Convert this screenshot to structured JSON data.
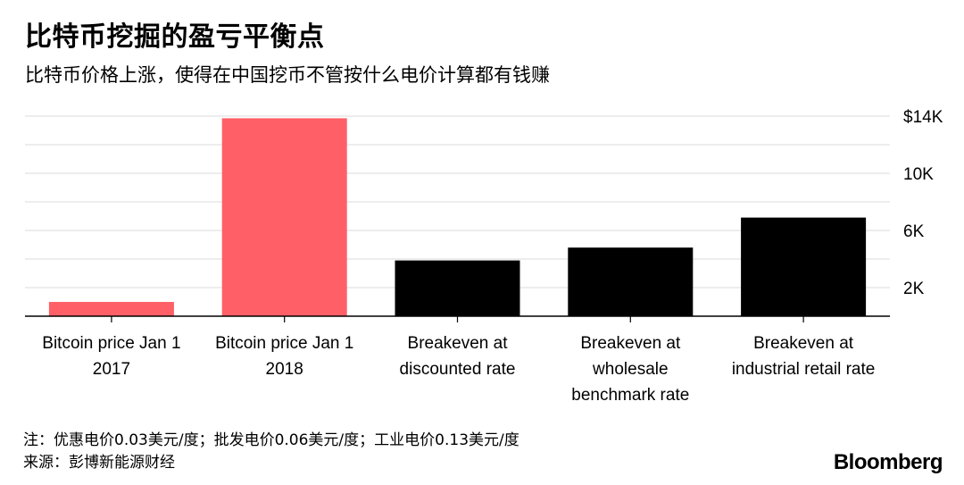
{
  "title": "比特币挖掘的盈亏平衡点",
  "subtitle": "比特币价格上涨，使得在中国挖币不管按什么电价计算都有钱赚",
  "footnote": {
    "note": "注：优惠电价0.03美元/度；批发电价0.06美元/度；工业电价0.13美元/度",
    "source": "来源：彭博新能源财经"
  },
  "brand": "Bloomberg",
  "colors": {
    "highlight": "#ff5f66",
    "bar": "#000000",
    "grid": "#e2e2e2",
    "baseline": "#000000",
    "text": "#000000"
  },
  "chart_data": {
    "type": "bar",
    "categories": [
      [
        "Bitcoin price Jan 1",
        "2017"
      ],
      [
        "Bitcoin price Jan 1",
        "2018"
      ],
      [
        "Breakeven at",
        "discounted rate"
      ],
      [
        "Breakeven at",
        "wholesale",
        "benchmark rate"
      ],
      [
        "Breakeven at",
        "industrial retail rate"
      ]
    ],
    "values": [
      998,
      13850,
      3900,
      4800,
      6900
    ],
    "bar_colors": [
      "highlight",
      "highlight",
      "bar",
      "bar",
      "bar"
    ],
    "y_ticks": [
      2000,
      6000,
      10000,
      14000
    ],
    "y_tick_labels": [
      "2K",
      "6K",
      "10K",
      "$14K"
    ],
    "ylim": [
      0,
      14000
    ],
    "axis_position": "right",
    "grid": true,
    "gridline_values": [
      2000,
      4000,
      6000,
      8000,
      10000,
      12000,
      14000
    ]
  }
}
